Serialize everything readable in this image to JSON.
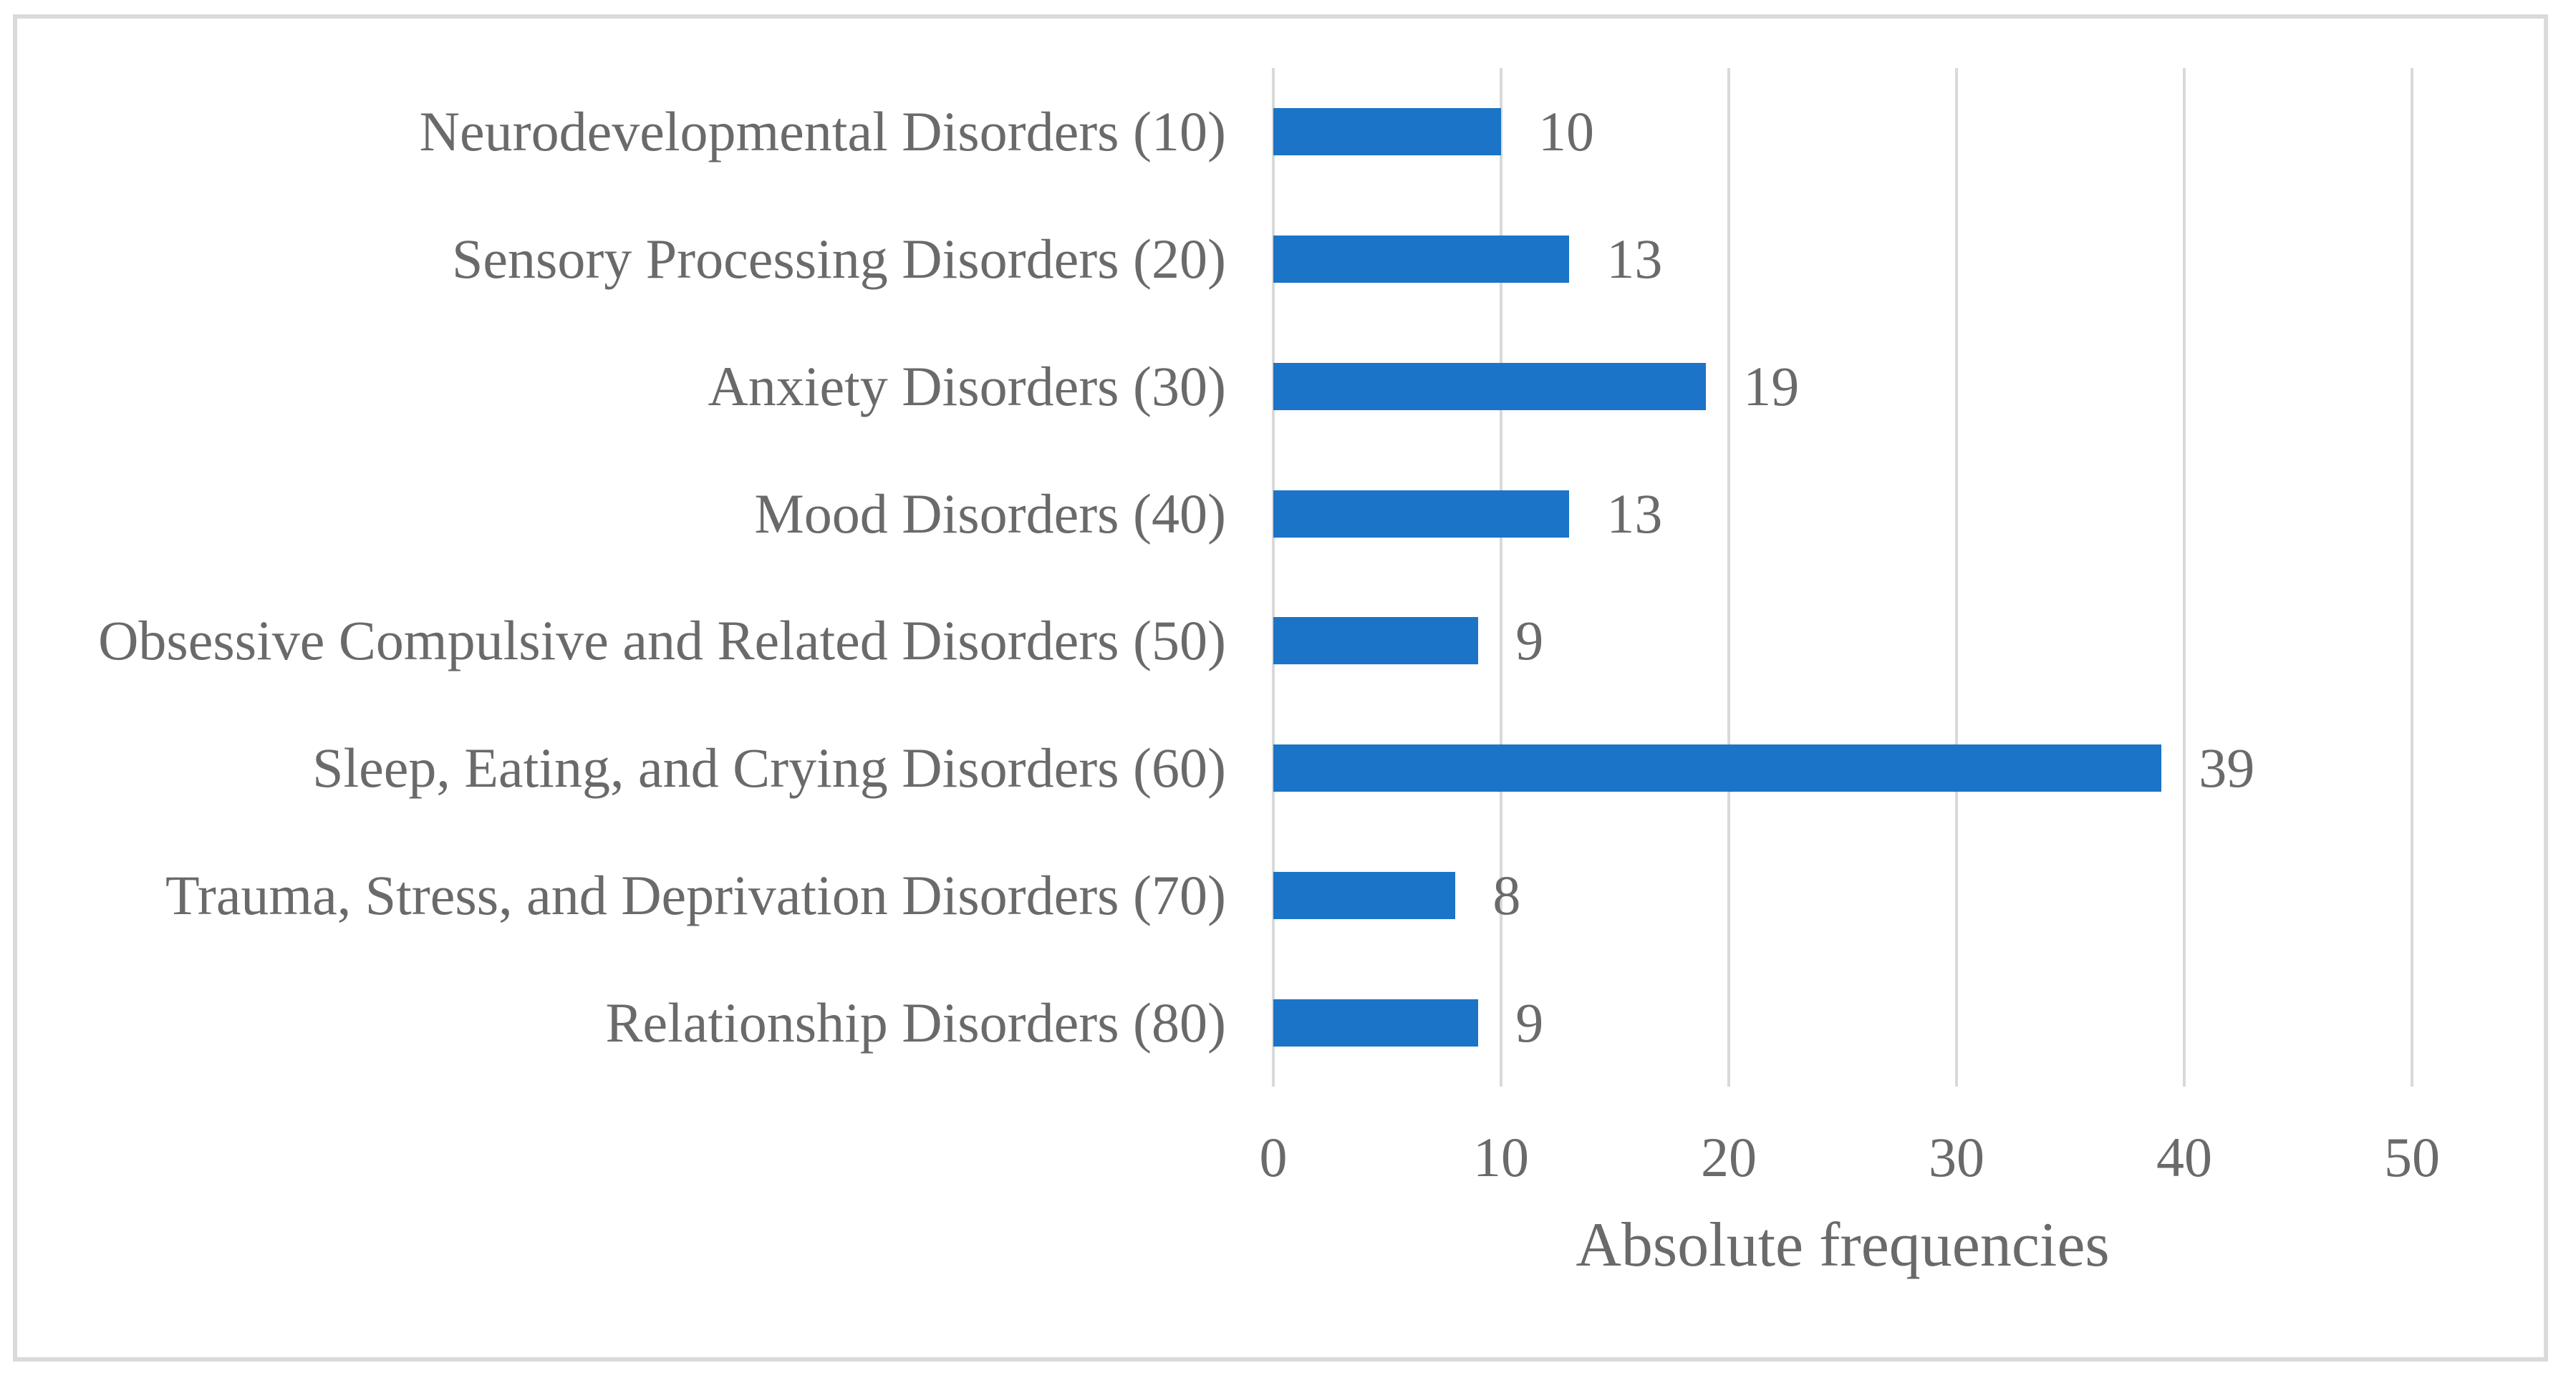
{
  "figure": {
    "background": "#FFFFFF",
    "frame_color": "#DADADA"
  },
  "chart_data": {
    "type": "bar",
    "orientation": "horizontal",
    "title": "",
    "xlabel": "Absolute frequencies",
    "ylabel": "",
    "categories": [
      "Neurodevelopmental Disorders (10)",
      "Sensory Processing Disorders (20)",
      "Anxiety Disorders (30)",
      "Mood Disorders (40)",
      "Obsessive Compulsive and Related Disorders (50)",
      "Sleep, Eating, and Crying Disorders (60)",
      "Trauma, Stress, and Deprivation Disorders (70)",
      "Relationship Disorders (80)"
    ],
    "values": [
      10,
      13,
      19,
      13,
      9,
      39,
      8,
      9
    ],
    "data_labels": [
      "10",
      "13",
      "19",
      "13",
      "9",
      "39",
      "8",
      "9"
    ],
    "xlim": [
      0,
      50
    ],
    "x_ticks": [
      0,
      10,
      20,
      30,
      40,
      50
    ],
    "grid": "vertical",
    "legend": "none",
    "colors": {
      "bar": "#1B74C8",
      "text": "#6A6A6A",
      "gridline": "#D9D9D9"
    }
  }
}
